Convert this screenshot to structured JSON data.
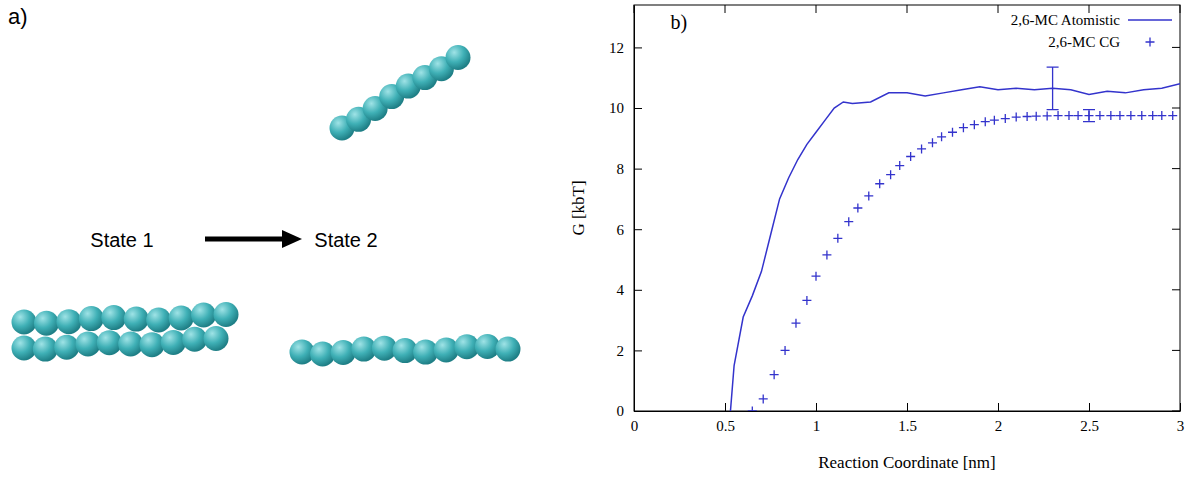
{
  "diagram": {
    "label": "a)",
    "states": [
      {
        "label": "State 1"
      },
      {
        "label": "State 2"
      }
    ]
  },
  "chart_data": {
    "type": "line",
    "annotations": [
      "b)"
    ],
    "x_label": "Reaction Coordinate [nm]",
    "y_label": "G [kbT]",
    "xlim": [
      0,
      3
    ],
    "xticks": [
      0,
      0.5,
      1,
      1.5,
      2,
      2.5,
      3
    ],
    "ylim": [
      0,
      13.4
    ],
    "yticks": [
      0,
      2,
      4,
      6,
      8,
      10,
      12
    ],
    "legend": "top-right",
    "series": [
      {
        "name": "2,6-MC Atomistic",
        "type": "line",
        "line_style": "solid",
        "color": "#3333cc",
        "x": [
          0.53,
          0.55,
          0.6,
          0.65,
          0.7,
          0.75,
          0.8,
          0.85,
          0.9,
          0.95,
          1.0,
          1.05,
          1.1,
          1.15,
          1.2,
          1.3,
          1.4,
          1.5,
          1.6,
          1.7,
          1.8,
          1.9,
          2.0,
          2.1,
          2.2,
          2.3,
          2.4,
          2.5,
          2.6,
          2.7,
          2.8,
          2.9,
          3.0
        ],
        "values": [
          0,
          1.5,
          3.1,
          3.8,
          4.6,
          5.8,
          7.0,
          7.7,
          8.3,
          8.8,
          9.2,
          9.6,
          10.0,
          10.2,
          10.15,
          10.2,
          10.5,
          10.5,
          10.4,
          10.5,
          10.6,
          10.7,
          10.6,
          10.65,
          10.6,
          10.65,
          10.6,
          10.45,
          10.55,
          10.5,
          10.6,
          10.65,
          10.8
        ],
        "errors": [
          null,
          null,
          null,
          null,
          null,
          null,
          null,
          null,
          null,
          null,
          null,
          null,
          null,
          null,
          null,
          null,
          null,
          null,
          null,
          null,
          null,
          null,
          null,
          null,
          null,
          0.7,
          null,
          null,
          null,
          null,
          null,
          null,
          null
        ]
      },
      {
        "name": "2,6-MC CG",
        "type": "scatter",
        "marker": "cross",
        "color": "#3333cc",
        "x": [
          0.65,
          0.71,
          0.77,
          0.83,
          0.89,
          0.95,
          1.0,
          1.06,
          1.12,
          1.18,
          1.23,
          1.29,
          1.35,
          1.41,
          1.46,
          1.52,
          1.58,
          1.64,
          1.69,
          1.75,
          1.81,
          1.87,
          1.93,
          1.98,
          2.04,
          2.1,
          2.16,
          2.21,
          2.27,
          2.33,
          2.39,
          2.44,
          2.5,
          2.56,
          2.62,
          2.67,
          2.73,
          2.79,
          2.85,
          2.9,
          2.96
        ],
        "values": [
          0,
          0.4,
          1.2,
          2.0,
          2.9,
          3.65,
          4.45,
          5.15,
          5.7,
          6.25,
          6.7,
          7.1,
          7.5,
          7.8,
          8.1,
          8.4,
          8.65,
          8.85,
          9.05,
          9.2,
          9.35,
          9.45,
          9.55,
          9.6,
          9.65,
          9.7,
          9.72,
          9.73,
          9.74,
          9.75,
          9.75,
          9.75,
          9.75,
          9.75,
          9.75,
          9.75,
          9.75,
          9.75,
          9.75,
          9.75,
          9.75
        ],
        "errors": [
          null,
          null,
          null,
          null,
          null,
          null,
          null,
          null,
          null,
          null,
          null,
          null,
          null,
          null,
          null,
          null,
          null,
          null,
          null,
          null,
          null,
          null,
          null,
          null,
          null,
          null,
          null,
          null,
          null,
          null,
          null,
          null,
          0.2,
          null,
          null,
          null,
          null,
          null,
          null,
          null,
          null
        ]
      }
    ]
  }
}
